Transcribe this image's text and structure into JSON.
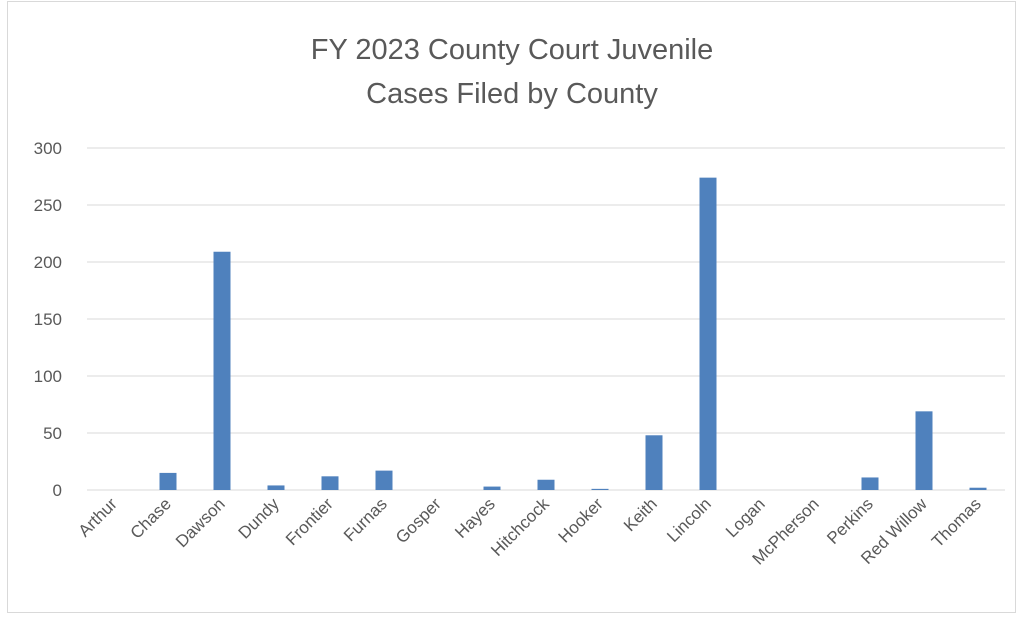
{
  "chart_data": {
    "type": "bar",
    "title_lines": [
      "FY 2023 County Court Juvenile",
      "Cases Filed by County"
    ],
    "categories": [
      "Arthur",
      "Chase",
      "Dawson",
      "Dundy",
      "Frontier",
      "Furnas",
      "Gosper",
      "Hayes",
      "Hitchcock",
      "Hooker",
      "Keith",
      "Lincoln",
      "Logan",
      "McPherson",
      "Perkins",
      "Red Willow",
      "Thomas"
    ],
    "values": [
      0,
      15,
      209,
      4,
      12,
      17,
      0,
      3,
      9,
      1,
      48,
      274,
      0,
      0,
      11,
      69,
      2
    ],
    "ylim": [
      0,
      300
    ],
    "yticks": [
      "0",
      "50",
      "100",
      "150",
      "200",
      "250",
      "300"
    ],
    "grid": true,
    "legend": "none",
    "bar_color": "#4f81bd",
    "grid_color": "#d9d9d9",
    "text_color": "#595959"
  }
}
